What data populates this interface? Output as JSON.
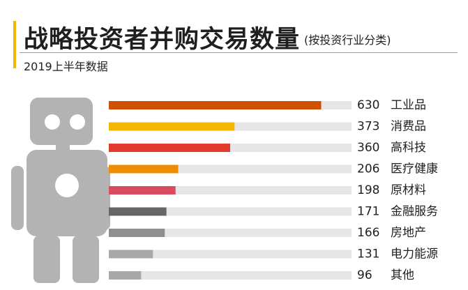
{
  "header": {
    "title": "战略投资者并购交易数量",
    "subtitle": "(按投资行业分类)",
    "period": "2019上半年数据"
  },
  "colors": {
    "accent": "#f2b705",
    "track": "#e6e6e6",
    "robot": "#b3b3b3",
    "robot_face": "#ffffff"
  },
  "chart_data": {
    "type": "bar",
    "orientation": "horizontal",
    "categories": [
      "工业品",
      "消费品",
      "高科技",
      "医疗健康",
      "原材料",
      "金融服务",
      "房地产",
      "电力能源",
      "其他"
    ],
    "values": [
      630,
      373,
      360,
      206,
      198,
      171,
      166,
      131,
      96
    ],
    "value_labels": [
      "630",
      "373",
      "360",
      "206",
      "198",
      "171",
      "166",
      "131",
      "96"
    ],
    "colors": [
      "#cf5000",
      "#f2b705",
      "#e23b2e",
      "#f08c00",
      "#d94b5f",
      "#666666",
      "#8f8f8f",
      "#a8a8a8",
      "#a8a8a8"
    ],
    "xlim": [
      0,
      720
    ],
    "title": "战略投资者并购交易数量",
    "subtitle": "(按投资行业分类)",
    "xlabel": "",
    "ylabel": "",
    "grid": false,
    "legend": false
  }
}
